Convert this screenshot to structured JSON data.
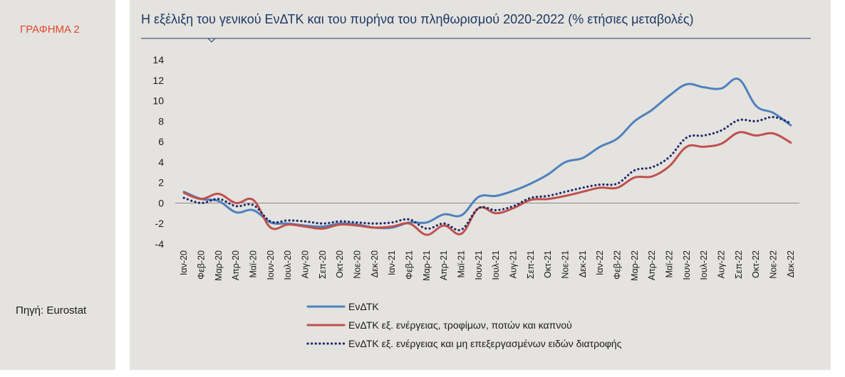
{
  "figure_label": "ΓΡΑΦΗΜΑ 2",
  "source": "Πηγή: Eurostat",
  "colors": {
    "title": "#1f3864",
    "figure_label": "#e2472f",
    "series_blue": "#4f81bd",
    "series_red": "#c0504d",
    "series_navy": "#1f2a6b"
  },
  "chart_data": {
    "type": "line",
    "title": "Η εξέλιξη του γενικού ΕνΔΤΚ και του πυρήνα του πληθωρισμού 2020-2022 (% ετήσιες μεταβολές)",
    "ylim": [
      -4,
      14
    ],
    "yticks": [
      14,
      12,
      10,
      8,
      6,
      4,
      2,
      0,
      -2,
      -4
    ],
    "grid": false,
    "legend_position": "bottom",
    "categories": [
      "Ιαν-20",
      "Φεβ-20",
      "Μαρ-20",
      "Απρ-20",
      "Μαϊ-20",
      "Ιουν-20",
      "Ιουλ-20",
      "Αυγ-20",
      "Σεπ-20",
      "Οκτ-20",
      "Νοε-20",
      "Δεκ-20",
      "Ιαν-21",
      "Φεβ-21",
      "Μαρ-21",
      "Απρ-21",
      "Μαϊ-21",
      "Ιουν-21",
      "Ιουλ-21",
      "Αυγ-21",
      "Σεπ-21",
      "Οκτ-21",
      "Νοε-21",
      "Δεκ-21",
      "Ιαν-22",
      "Φεβ-22",
      "Μαρ-22",
      "Απρ-22",
      "Μαϊ-22",
      "Ιουν-22",
      "Ιουλ-22",
      "Αυγ-22",
      "Σεπ-22",
      "Οκτ-22",
      "Νοε-22",
      "Δεκ-22"
    ],
    "series": [
      {
        "name": "ΕνΔΤΚ",
        "style": "solid",
        "color": "#4f81bd",
        "values": [
          1.1,
          0.4,
          0.2,
          -0.9,
          -0.7,
          -1.9,
          -2.0,
          -2.2,
          -2.3,
          -2.0,
          -2.1,
          -2.4,
          -2.4,
          -1.9,
          -1.9,
          -1.1,
          -1.2,
          0.6,
          0.7,
          1.2,
          1.9,
          2.8,
          4.0,
          4.4,
          5.5,
          6.3,
          8.0,
          9.1,
          10.5,
          11.6,
          11.3,
          11.2,
          12.1,
          9.5,
          8.8,
          7.6
        ]
      },
      {
        "name": "ΕνΔΤΚ εξ. ενέργειας, τροφίμων, ποτών και καπνού",
        "style": "solid",
        "color": "#c0504d",
        "values": [
          1.0,
          0.4,
          0.9,
          0.0,
          0.3,
          -2.4,
          -2.1,
          -2.3,
          -2.5,
          -2.1,
          -2.2,
          -2.4,
          -2.3,
          -2.0,
          -3.1,
          -2.2,
          -3.0,
          -0.5,
          -1.0,
          -0.5,
          0.3,
          0.4,
          0.7,
          1.1,
          1.5,
          1.5,
          2.5,
          2.6,
          3.6,
          5.5,
          5.5,
          5.8,
          6.9,
          6.6,
          6.8,
          5.9
        ]
      },
      {
        "name": "ΕνΔΤΚ εξ. ενέργειας και μη επεξεργασμένων ειδών διατροφής",
        "style": "dotted",
        "color": "#1f2a6b",
        "values": [
          0.5,
          0.0,
          0.4,
          -0.3,
          -0.2,
          -1.8,
          -1.7,
          -1.8,
          -2.0,
          -1.8,
          -1.9,
          -2.0,
          -1.9,
          -1.6,
          -2.5,
          -2.0,
          -2.6,
          -0.5,
          -0.7,
          -0.3,
          0.5,
          0.7,
          1.1,
          1.5,
          1.8,
          1.9,
          3.2,
          3.5,
          4.5,
          6.4,
          6.6,
          7.1,
          8.1,
          8.0,
          8.4,
          7.8
        ]
      }
    ]
  }
}
